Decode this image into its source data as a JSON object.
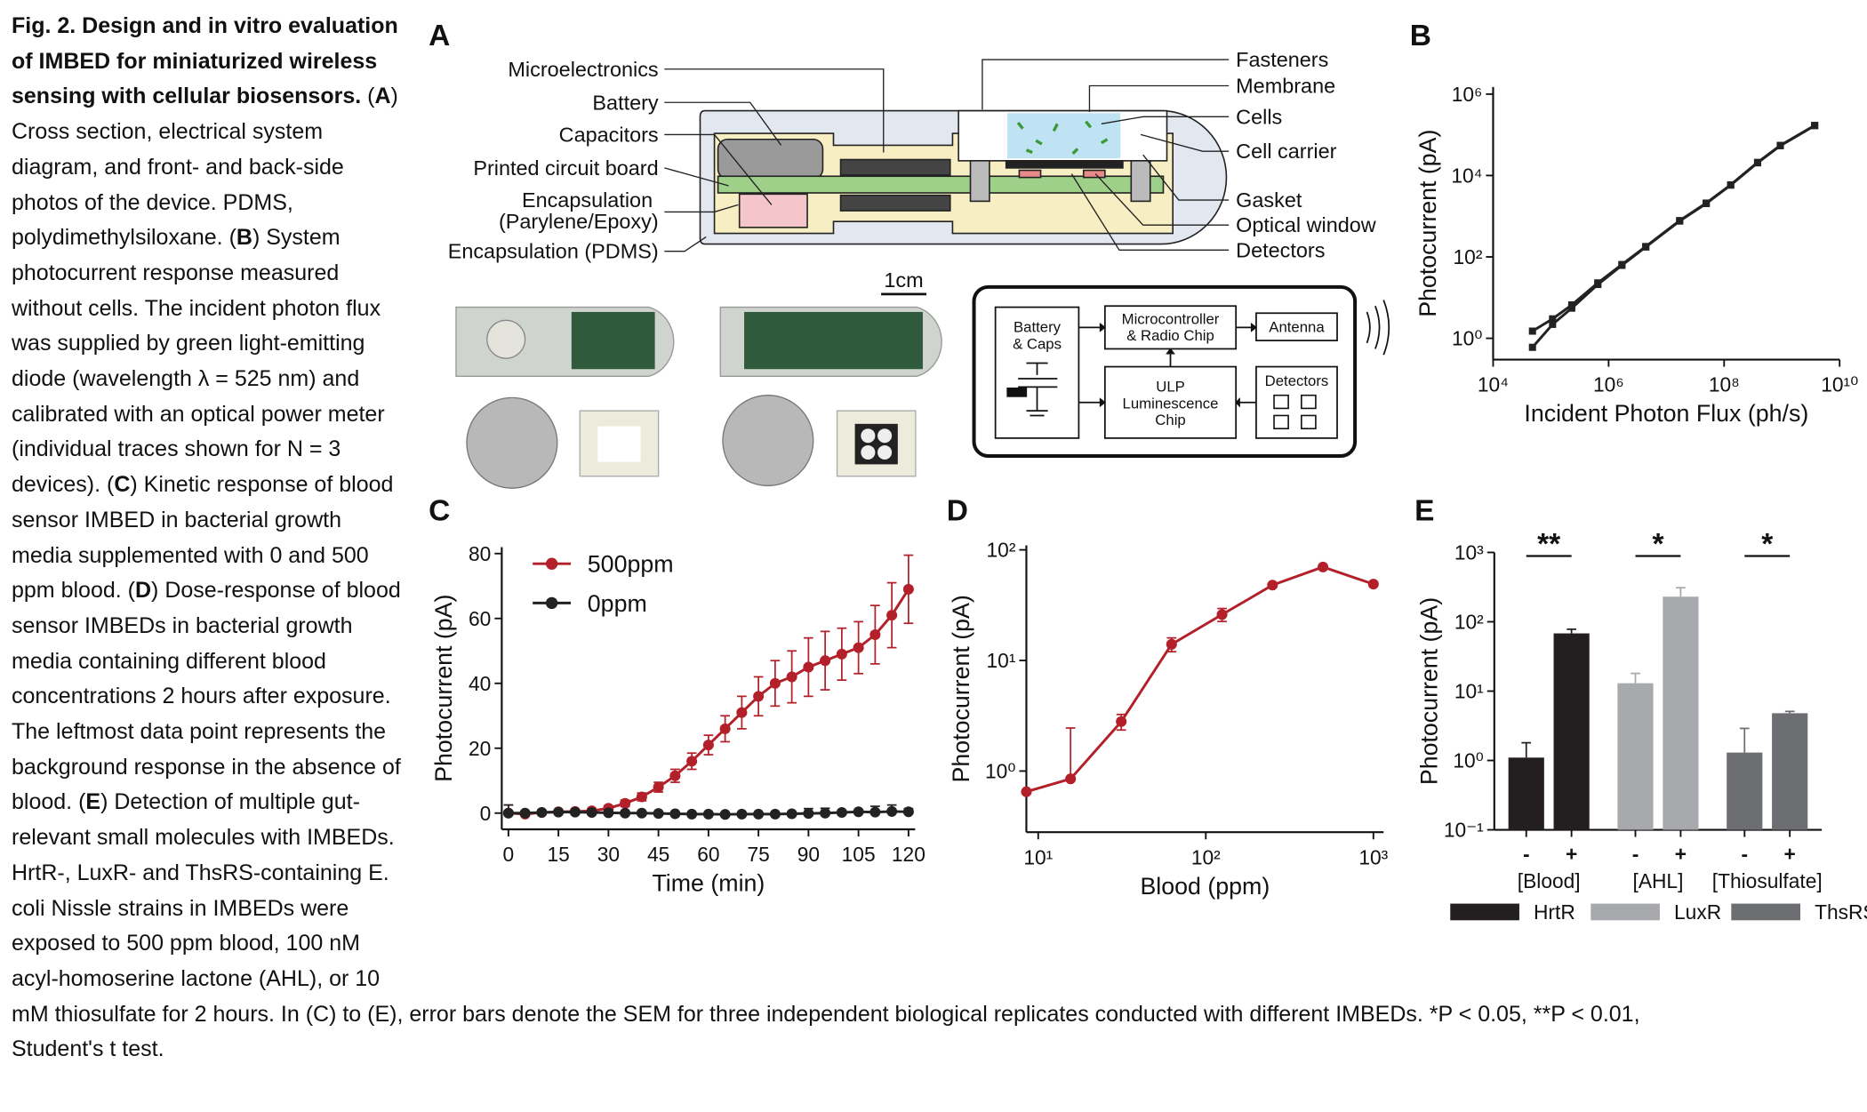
{
  "caption": {
    "title": "Fig. 2. Design and in vitro evaluation of IMBED for miniaturized wireless sensing with cellular biosensors.",
    "parts": [
      {
        "lead": " (",
        "label": "A",
        "text": ") Cross section, electrical system diagram, and front- and back-side photos of the device. PDMS, polydimethylsiloxane."
      },
      {
        "lead": " (",
        "label": "B",
        "text": ") System photocurrent response measured without cells. The incident photon flux was supplied by green light-emitting diode (wavelength λ = 525 nm) and calibrated with an optical power meter (individual traces shown for N = 3 devices)."
      },
      {
        "lead": " (",
        "label": "C",
        "text": ") Kinetic response of blood sensor IMBED in bacterial growth media supplemented with 0 and 500 ppm blood."
      },
      {
        "lead": " (",
        "label": "D",
        "text": ") Dose-response of blood sensor IMBEDs in bacterial growth media containing different blood concentrations 2 hours after exposure. The leftmost data point represents the background response in the absence of blood."
      },
      {
        "lead": " (",
        "label": "E",
        "text": ") Detection of multiple gut-relevant small molecules with IMBEDs. HrtR-, LuxR- and ThsRS-containing E. coli Nissle strains in IMBEDs were exposed to 500 ppm blood, 100 nM acyl-homoserine lactone (AHL), or 10 mM thiosulfate for 2 hours. In (C) to (E), error bars denote the SEM for three independent biological replicates conducted with different IMBEDs. *P < 0.05, **P < 0.01, Student's t test."
      }
    ]
  },
  "panel_labels": [
    "A",
    "B",
    "C",
    "D",
    "E"
  ],
  "diagram": {
    "left_labels": [
      "Microelectronics",
      "Battery",
      "Capacitors",
      "Printed circuit board",
      [
        "Encapsulation",
        "(Parylene/Epoxy)"
      ],
      "Encapsulation (PDMS)"
    ],
    "right_labels": [
      "Fasteners",
      "Membrane",
      "Cells",
      "Cell carrier",
      "Gasket",
      "Optical window",
      "Detectors"
    ],
    "scale_bar": "1cm",
    "blocks": [
      [
        "Battery",
        "& Caps"
      ],
      [
        "Microcontroller",
        "& Radio Chip"
      ],
      [
        "Antenna"
      ],
      [
        "ULP",
        "Luminescence",
        "Chip"
      ],
      [
        "Detectors"
      ]
    ]
  },
  "chart_data": [
    {
      "type": "line",
      "xlabel": "Incident Photon Flux  (ph/s)",
      "ylabel": "Photocurrent (pA)",
      "xscale": "log",
      "yscale": "log",
      "xlim": [
        10000,
        10000000000
      ],
      "ylim": [
        0.3,
        1500000
      ],
      "xticks": [
        {
          "value": 10000,
          "label": "10⁴"
        },
        {
          "value": 1000000,
          "label": "10⁶"
        },
        {
          "value": 100000000,
          "label": "10⁸"
        },
        {
          "value": 10000000000,
          "label": "10¹⁰"
        }
      ],
      "yticks": [
        {
          "value": 1,
          "label": "10⁰"
        },
        {
          "value": 100,
          "label": "10²"
        },
        {
          "value": 10000,
          "label": "10⁴"
        },
        {
          "value": 1000000,
          "label": "10⁶"
        }
      ],
      "marker": "square",
      "x": [
        48000,
        107000,
        230000,
        650000,
        1700000,
        4400000,
        17000000,
        49000000,
        130000000,
        380000000,
        940000000,
        3700000000
      ],
      "series": [
        {
          "color": "#222222",
          "values": [
            1.5,
            3,
            6.6,
            23,
            65,
            180,
            780,
            2100,
            5900,
            21000,
            55000,
            170000
          ]
        },
        {
          "color": "#222222",
          "values": [
            0.6,
            2.2,
            5.5,
            21,
            62,
            175,
            760,
            2050,
            5800,
            20500,
            54000,
            168000
          ]
        }
      ]
    },
    {
      "type": "line",
      "xlabel": "Time (min)",
      "ylabel": "Photocurrent (pA)",
      "xlim": [
        -2,
        122
      ],
      "ylim": [
        -5,
        82
      ],
      "xticks": [
        0,
        15,
        30,
        45,
        60,
        75,
        90,
        105,
        120
      ],
      "yticks": [
        0,
        20,
        40,
        60,
        80
      ],
      "marker": "circle",
      "legend": "upper left",
      "x": [
        0,
        5,
        10,
        15,
        20,
        25,
        30,
        35,
        40,
        45,
        50,
        55,
        60,
        65,
        70,
        75,
        80,
        85,
        90,
        95,
        100,
        105,
        110,
        115,
        120
      ],
      "series": [
        {
          "name": "500ppm",
          "color": "#b3202a",
          "values": [
            0,
            -0.3,
            0.2,
            0.4,
            0.5,
            0.7,
            1.5,
            3,
            5,
            8,
            11.5,
            16,
            21,
            26,
            31,
            36,
            40,
            42,
            45,
            47,
            49,
            51,
            55,
            61,
            69
          ],
          "errors": [
            2.5,
            0.5,
            0.4,
            0.5,
            0.5,
            0.6,
            0.8,
            1,
            1.2,
            1.5,
            2,
            2.5,
            3,
            4,
            5,
            6,
            7,
            8,
            9,
            9,
            8,
            8,
            9,
            10,
            10.5
          ]
        },
        {
          "name": "0ppm",
          "color": "#222222",
          "values": [
            0,
            0,
            0.2,
            0.3,
            0.3,
            0.2,
            0.1,
            0,
            0,
            -0.1,
            -0.2,
            -0.3,
            -0.3,
            -0.4,
            -0.3,
            -0.3,
            -0.3,
            -0.2,
            -0.1,
            0,
            0.2,
            0.4,
            0.3,
            0.5,
            0.4
          ],
          "errors": [
            2.5,
            0.5,
            0.4,
            0.4,
            0.4,
            0.3,
            0.3,
            0.3,
            0.3,
            0.3,
            0.3,
            0.3,
            0.3,
            0.3,
            0.3,
            0.3,
            0.4,
            0.4,
            1.5,
            1.5,
            0.6,
            0.5,
            1.8,
            2,
            1
          ]
        }
      ]
    },
    {
      "type": "line",
      "xlabel": "Blood (ppm)",
      "ylabel": "Photocurrent (pA)",
      "xscale": "log",
      "yscale": "log",
      "xlim": [
        8.5,
        1150
      ],
      "ylim": [
        0.28,
        110
      ],
      "xticks": [
        {
          "value": 10,
          "label": "10¹"
        },
        {
          "value": 100,
          "label": "10²"
        },
        {
          "value": 1000,
          "label": "10³"
        }
      ],
      "yticks": [
        {
          "value": 1,
          "label": "10⁰"
        },
        {
          "value": 10,
          "label": "10¹"
        },
        {
          "value": 100,
          "label": "10²"
        }
      ],
      "marker": "circle",
      "x": [
        8.5,
        15.6,
        31.3,
        62.5,
        125,
        250,
        500,
        1000
      ],
      "series": [
        {
          "color": "#b3202a",
          "values": [
            0.65,
            0.85,
            2.8,
            14,
            26,
            48,
            70,
            49
          ],
          "errors": [
            null,
            1.6,
            0.45,
            2,
            3.5,
            null,
            null,
            null
          ]
        }
      ]
    },
    {
      "type": "bar",
      "ylabel": "Photocurrent (pA)",
      "yscale": "log",
      "ylim": [
        0.1,
        1000
      ],
      "yticks": [
        {
          "value": 0.1,
          "label": "10⁻¹"
        },
        {
          "value": 1,
          "label": "10⁰"
        },
        {
          "value": 10,
          "label": "10¹"
        },
        {
          "value": 100,
          "label": "10²"
        },
        {
          "value": 1000,
          "label": "10³"
        }
      ],
      "groups": [
        "[Blood]",
        "[AHL]",
        "[Thiosulfate]"
      ],
      "conditions": [
        "-",
        "+"
      ],
      "significance": [
        "**",
        "*",
        "*"
      ],
      "legend": "bottom",
      "series": [
        {
          "name": "HrtR",
          "color": "#231f20",
          "values": [
            1.1,
            68
          ],
          "errors": [
            0.7,
            10
          ]
        },
        {
          "name": "LuxR",
          "color": "#a7a9ac",
          "values": [
            13,
            230
          ],
          "errors": [
            5,
            80
          ]
        },
        {
          "name": "ThsRS",
          "color": "#6d6e71",
          "values": [
            1.3,
            4.8
          ],
          "errors": [
            1.6,
            0.3
          ]
        }
      ]
    }
  ]
}
